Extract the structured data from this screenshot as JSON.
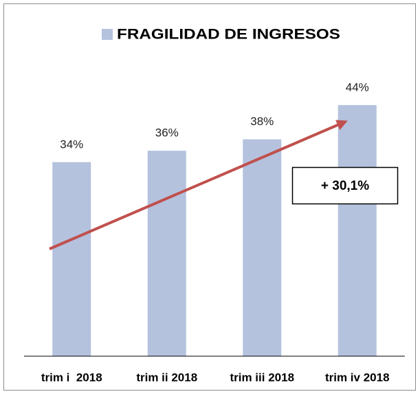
{
  "chart_data": {
    "type": "bar",
    "categories": [
      "trim i  2018",
      "trim ii 2018",
      "trim iii 2018",
      "trim iv 2018"
    ],
    "series": [
      {
        "name": "FRAGILIDAD DE INGRESOS",
        "color": "#b4c2de",
        "values": [
          34,
          36,
          38,
          44
        ],
        "value_labels": [
          "34%",
          "36%",
          "38%",
          "44%"
        ]
      }
    ],
    "ylim": [
      0,
      50
    ],
    "annotations": [
      "+ 30,1%"
    ],
    "arrow_color": "#c0504d"
  }
}
